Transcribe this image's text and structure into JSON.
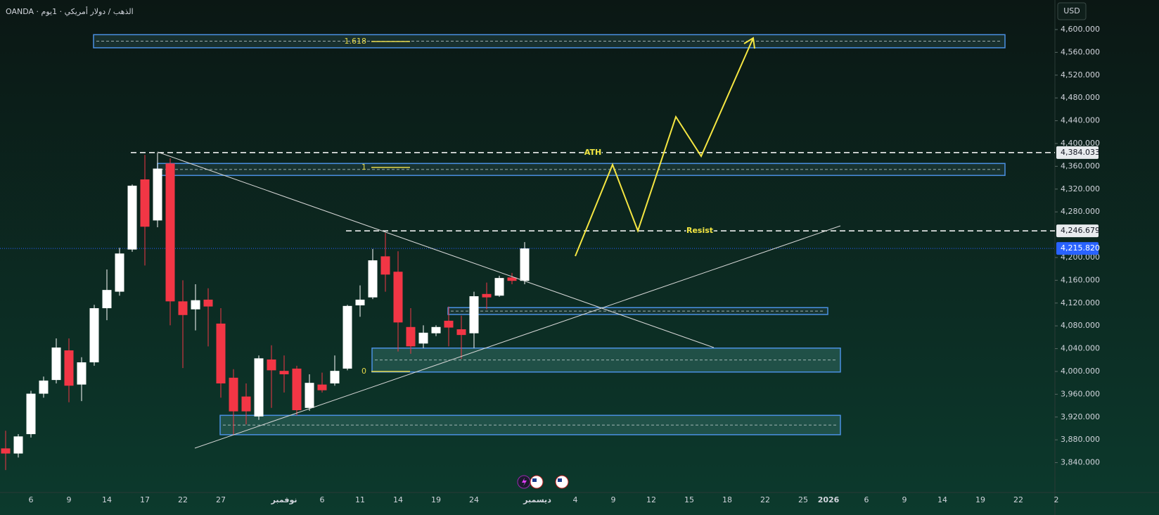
{
  "chart_data": {
    "type": "candlestick",
    "title": "OANDA · الذهب / دولار أمريكي · 1يوم",
    "currency": "USD",
    "categories": [
      null,
      null,
      "6",
      null,
      null,
      "9",
      null,
      null,
      "14",
      null,
      null,
      "17",
      null,
      null,
      "22",
      null,
      null,
      "27",
      null,
      null,
      null,
      null,
      "نوفمبر",
      null,
      null,
      "6",
      null,
      null,
      "11",
      null,
      null,
      "14",
      null,
      null,
      "19",
      null,
      null,
      "24",
      null,
      null,
      null,
      null,
      "ديسمبر",
      null,
      null,
      "4",
      null,
      null,
      "9",
      null,
      null,
      "12",
      null,
      null,
      "15",
      null,
      null,
      "18",
      null,
      null,
      "22",
      null,
      null,
      "25",
      null,
      "2026",
      null,
      null,
      "6",
      null,
      null,
      "9",
      null,
      null,
      "14",
      null,
      null,
      "19",
      null,
      null,
      "22",
      null,
      null,
      "2"
    ],
    "open": [
      3865,
      3856,
      3890,
      3961,
      3985,
      4037,
      3977,
      4016,
      4111,
      4140,
      4214,
      4337,
      4265,
      4365,
      4123,
      4109,
      4126,
      4084,
      3989,
      3956,
      3921,
      4021,
      4001,
      4005,
      3936,
      3977,
      3979,
      4005,
      4116,
      4130,
      4202,
      4175,
      4078,
      4049,
      4067,
      4089,
      4074,
      4067,
      4136,
      4133,
      4165,
      4159,
      null,
      null,
      null,
      null,
      null,
      null,
      null,
      null,
      null,
      null,
      null,
      null,
      null,
      null,
      null,
      null,
      null,
      null,
      null,
      null,
      null,
      null,
      null,
      null,
      null,
      null,
      null,
      null,
      null,
      null,
      null,
      null,
      null,
      null,
      null,
      null,
      null,
      null,
      null,
      null,
      null,
      null
    ],
    "high": [
      3896,
      3890,
      3966,
      3991,
      4058,
      4058,
      4025,
      4117,
      4179,
      4217,
      4328,
      4380,
      4384.033,
      4374,
      4160,
      4153,
      4146,
      4111,
      4004,
      3979,
      4028,
      4046,
      4028,
      4010,
      3995,
      3998,
      4028,
      4117,
      4151,
      4215,
      4243,
      4211,
      4111,
      4081,
      4081,
      4114,
      4098,
      4140,
      4156,
      4168,
      4173,
      4227,
      null,
      null,
      null,
      null,
      null,
      null,
      null,
      null,
      null,
      null,
      null,
      null,
      null,
      null,
      null,
      null,
      null,
      null,
      null,
      null,
      null,
      null,
      null,
      null,
      null,
      null,
      null,
      null,
      null,
      null,
      null,
      null,
      null,
      null,
      null,
      null,
      null,
      null,
      null,
      null,
      null,
      null
    ],
    "low": [
      3827,
      3849,
      3884,
      3954,
      3979,
      3946,
      3948,
      4010,
      4090,
      4133,
      4210,
      4186,
      4253,
      4081,
      4006,
      4072,
      4044,
      3954,
      3889,
      3907,
      3915,
      3936,
      3963,
      3923,
      3931,
      3963,
      3975,
      4002,
      4096,
      4127,
      4140,
      4035,
      4031,
      4041,
      4062,
      4044,
      4022,
      4041,
      4109,
      4131,
      4153,
      4153,
      null,
      null,
      null,
      null,
      null,
      null,
      null,
      null,
      null,
      null,
      null,
      null,
      null,
      null,
      null,
      null,
      null,
      null,
      null,
      null,
      null,
      null,
      null,
      null,
      null,
      null,
      null,
      null,
      null,
      null,
      null,
      null,
      null,
      null,
      null,
      null,
      null,
      null,
      null,
      null,
      null,
      null
    ],
    "close": [
      3856,
      3886,
      3961,
      3984,
      4042,
      3975,
      4016,
      4111,
      4143,
      4207,
      4326,
      4254,
      4356,
      4123,
      4099,
      4125,
      4114,
      3979,
      3930,
      3930,
      4023,
      4002,
      3995,
      3932,
      3980,
      3967,
      4001,
      4115,
      4126,
      4195,
      4170,
      4086,
      4044,
      4068,
      4078,
      4077,
      4064,
      4132,
      4130,
      4164,
      4159,
      4215.82,
      null,
      null,
      null,
      null,
      null,
      null,
      null,
      null,
      null,
      null,
      null,
      null,
      null,
      null,
      null,
      null,
      null,
      null,
      null,
      null,
      null,
      null,
      null,
      null,
      null,
      null,
      null,
      null,
      null,
      null,
      null,
      null,
      null,
      null,
      null,
      null,
      null,
      null,
      null,
      null,
      null,
      null
    ],
    "up_color": "#ffffff",
    "down_color": "#f23645",
    "ylim": [
      3787.6,
      4651.85
    ],
    "yticks": [
      {
        "value": 3840,
        "label": "3,840.000"
      },
      {
        "value": 3880,
        "label": "3,880.000"
      },
      {
        "value": 3920,
        "label": "3,920.000"
      },
      {
        "value": 3960,
        "label": "3,960.000"
      },
      {
        "value": 4000,
        "label": "4,000.000"
      },
      {
        "value": 4040,
        "label": "4,040.000"
      },
      {
        "value": 4080,
        "label": "4,080.000"
      },
      {
        "value": 4120,
        "label": "4,120.000"
      },
      {
        "value": 4160,
        "label": "4,160.000"
      },
      {
        "value": 4200,
        "label": "4,200.000"
      },
      {
        "value": 4280,
        "label": "4,280.000"
      },
      {
        "value": 4320,
        "label": "4,320.000"
      },
      {
        "value": 4360,
        "label": "4,360.000"
      },
      {
        "value": 4400,
        "label": "4,400.000"
      },
      {
        "value": 4440,
        "label": "4,440.000"
      },
      {
        "value": 4480,
        "label": "4,480.000"
      },
      {
        "value": 4520,
        "label": "4,520.000"
      },
      {
        "value": 4560,
        "label": "4,560.000"
      },
      {
        "value": 4600,
        "label": "4,600.000"
      }
    ],
    "zones": [
      {
        "ylim": [
          4568,
          4591
        ],
        "color": "#1e3a3a"
      },
      {
        "ylim": [
          4344,
          4365
        ],
        "color": "#1e3a3a"
      },
      {
        "ylim": [
          4100,
          4112
        ],
        "color": "#1e3a3a"
      },
      {
        "ylim": [
          3999,
          4041
        ],
        "color": "#2a5e56"
      },
      {
        "ylim": [
          3889,
          3923
        ],
        "color": "#2a5e56"
      }
    ],
    "fib": [
      {
        "ratio": "1.618",
        "price": 4579
      },
      {
        "ratio": "1",
        "price": 4358
      },
      {
        "ratio": "0",
        "price": 4000
      }
    ],
    "levels": [
      {
        "name": "ATH",
        "value": 4384.033,
        "label": "4,384.033"
      },
      {
        "name": "Resist",
        "value": 4246.679,
        "label": "4,246.679"
      }
    ],
    "last_price": {
      "value": 4215.82,
      "label": "4,215.820",
      "color": "#2962ff"
    }
  }
}
